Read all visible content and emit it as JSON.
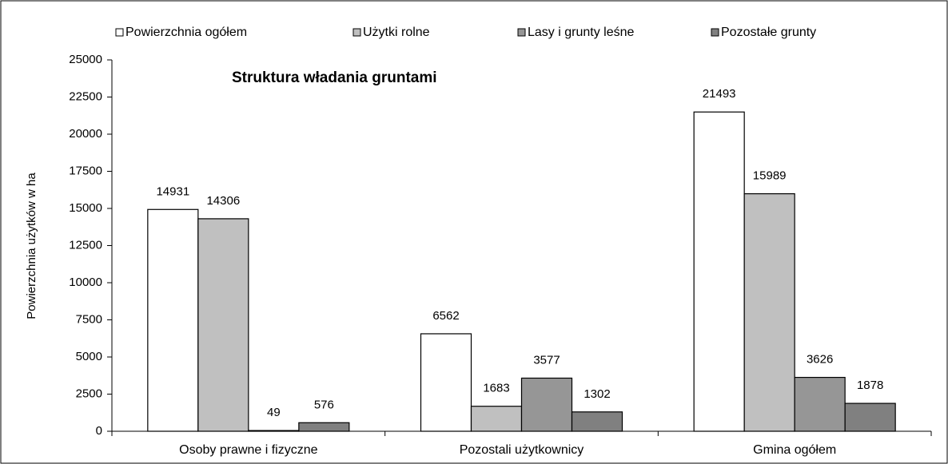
{
  "chart_data": {
    "type": "bar",
    "title": "Struktura władania gruntami",
    "y_label": "Powierzchnia użytków w ha",
    "categories": [
      "Osoby prawne i fizyczne",
      "Pozostali użytkownicy",
      "Gmina ogółem"
    ],
    "series": [
      {
        "name": "Powierzchnia ogółem",
        "color": "#ffffff",
        "values": [
          14931,
          6562,
          21493
        ]
      },
      {
        "name": "Użytki rolne",
        "color": "#c0c0c0",
        "values": [
          14306,
          1683,
          15989
        ]
      },
      {
        "name": "Lasy i grunty leśne",
        "color": "#969696",
        "values": [
          49,
          3577,
          3626
        ]
      },
      {
        "name": "Pozostałe grunty",
        "color": "#808080",
        "values": [
          576,
          1302,
          1878
        ]
      }
    ],
    "ylim": [
      0,
      25000
    ],
    "yticks": [
      0,
      2500,
      5000,
      7500,
      10000,
      12500,
      15000,
      17500,
      20000,
      22500,
      25000
    ],
    "grid": false
  }
}
